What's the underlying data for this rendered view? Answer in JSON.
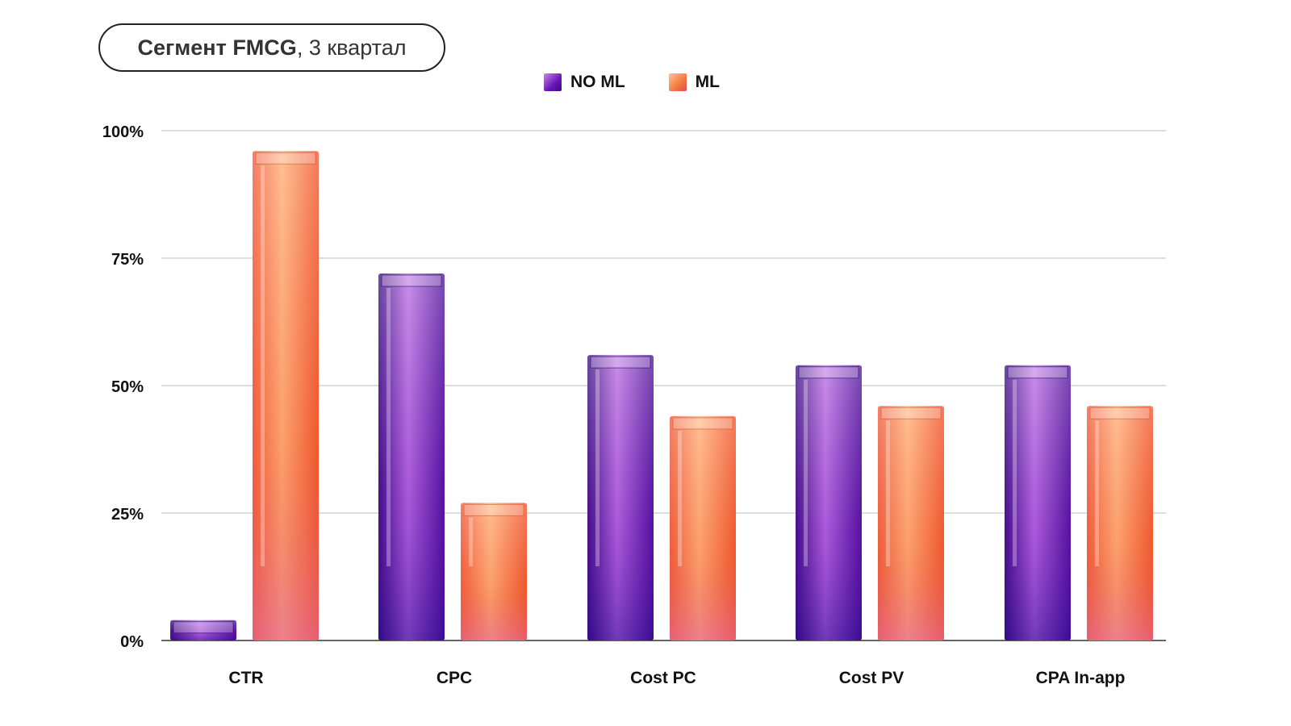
{
  "title": {
    "bold": "Сегмент FMCG",
    "light": ", 3 квартал"
  },
  "colors": {
    "no_ml": "#7a22c4",
    "ml": "#f27a3c"
  },
  "chart_data": {
    "type": "bar",
    "title": "Сегмент FMCG, 3 квартал",
    "categories": [
      "CTR",
      "CPC",
      "Cost PC",
      "Cost PV",
      "CPA In-app"
    ],
    "series": [
      {
        "name": "NO ML",
        "values": [
          4,
          72,
          56,
          54,
          54
        ]
      },
      {
        "name": "ML",
        "values": [
          96,
          27,
          44,
          46,
          46
        ]
      }
    ],
    "ylim": [
      0,
      100
    ],
    "yticks": [
      "0%",
      "25%",
      "50%",
      "75%",
      "100%"
    ],
    "ytick_values": [
      0,
      25,
      50,
      75,
      100
    ],
    "grid": true,
    "legend": "top-center",
    "xlabel": "",
    "ylabel": ""
  }
}
